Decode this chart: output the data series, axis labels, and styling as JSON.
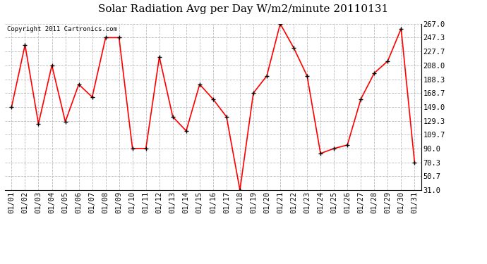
{
  "title": "Solar Radiation Avg per Day W/m2/minute 20110131",
  "copyright": "Copyright 2011 Cartronics.com",
  "dates": [
    "01/01",
    "01/02",
    "01/03",
    "01/04",
    "01/05",
    "01/06",
    "01/07",
    "01/08",
    "01/09",
    "01/10",
    "01/11",
    "01/12",
    "01/13",
    "01/14",
    "01/15",
    "01/16",
    "01/17",
    "01/18",
    "01/19",
    "01/20",
    "01/21",
    "01/22",
    "01/23",
    "01/24",
    "01/25",
    "01/26",
    "01/27",
    "01/28",
    "01/29",
    "01/30",
    "01/31"
  ],
  "values": [
    149.0,
    237.0,
    125.0,
    208.0,
    128.0,
    181.0,
    163.0,
    247.3,
    247.3,
    90.0,
    90.0,
    220.0,
    135.0,
    115.0,
    181.0,
    160.0,
    135.0,
    31.0,
    168.7,
    193.0,
    267.0,
    233.0,
    193.0,
    83.0,
    90.0,
    95.0,
    160.0,
    197.0,
    214.0,
    260.0,
    70.3
  ],
  "yticks": [
    31.0,
    50.7,
    70.3,
    90.0,
    109.7,
    129.3,
    149.0,
    168.7,
    188.3,
    208.0,
    227.7,
    247.3,
    267.0
  ],
  "line_color": "red",
  "marker_color": "black",
  "grid_color": "#bbbbbb",
  "bg_color": "#ffffff",
  "plot_bg_color": "#ffffff",
  "title_fontsize": 11,
  "copyright_fontsize": 6.5,
  "tick_fontsize": 7.5,
  "ymin": 31.0,
  "ymax": 267.0
}
